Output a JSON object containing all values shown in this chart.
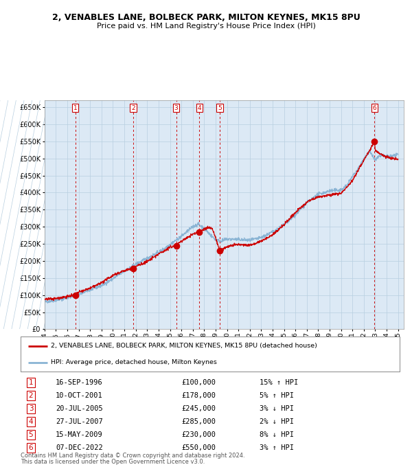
{
  "title_line1": "2, VENABLES LANE, BOLBECK PARK, MILTON KEYNES, MK15 8PU",
  "title_line2": "Price paid vs. HM Land Registry's House Price Index (HPI)",
  "plot_bg_color": "#dce9f5",
  "sale_dates_x": [
    1996.71,
    2001.78,
    2005.55,
    2007.57,
    2009.37,
    2022.93
  ],
  "sale_prices_y": [
    100000,
    178000,
    245000,
    285000,
    230000,
    550000
  ],
  "sale_labels": [
    "1",
    "2",
    "3",
    "4",
    "5",
    "6"
  ],
  "sale_label_dates": [
    "16-SEP-1996",
    "10-OCT-2001",
    "20-JUL-2005",
    "27-JUL-2007",
    "15-MAY-2009",
    "07-DEC-2022"
  ],
  "sale_label_prices": [
    "£100,000",
    "£178,000",
    "£245,000",
    "£285,000",
    "£230,000",
    "£550,000"
  ],
  "sale_label_hpi": [
    "15% ↑ HPI",
    "5% ↑ HPI",
    "3% ↓ HPI",
    "2% ↓ HPI",
    "8% ↓ HPI",
    "3% ↑ HPI"
  ],
  "red_line_color": "#cc0000",
  "blue_line_color": "#8ab4d4",
  "marker_color": "#cc0000",
  "dashed_line_color": "#cc0000",
  "grid_color": "#b8cfe0",
  "ylim": [
    0,
    670000
  ],
  "yticks": [
    0,
    50000,
    100000,
    150000,
    200000,
    250000,
    300000,
    350000,
    400000,
    450000,
    500000,
    550000,
    600000,
    650000
  ],
  "legend_label_red": "2, VENABLES LANE, BOLBECK PARK, MILTON KEYNES, MK15 8PU (detached house)",
  "legend_label_blue": "HPI: Average price, detached house, Milton Keynes",
  "footer_line1": "Contains HM Land Registry data © Crown copyright and database right 2024.",
  "footer_line2": "This data is licensed under the Open Government Licence v3.0."
}
